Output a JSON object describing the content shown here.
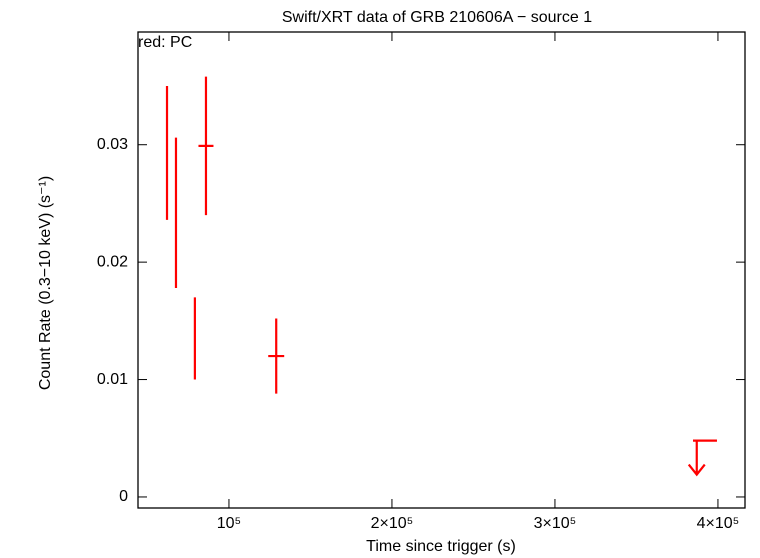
{
  "chart_data": {
    "type": "errorbar",
    "title": "Swift/XRT data of GRB 210606A − source 1",
    "subtitle": "red: PC",
    "x_label": "Time since trigger (s)",
    "y_label": "Count Rate (0.3−10 keV) (s⁻¹)",
    "xlim": [
      44200,
      416600
    ],
    "ylim": [
      -0.00094,
      0.0396
    ],
    "xticks": [
      {
        "value": 100000,
        "label": "10⁵"
      },
      {
        "value": 200000,
        "label": "2×10⁵"
      },
      {
        "value": 300000,
        "label": "3×10⁵"
      },
      {
        "value": 400000,
        "label": "4×10⁵"
      }
    ],
    "yticks": [
      0,
      0.01,
      0.02,
      0.03
    ],
    "series": [
      {
        "name": "PC",
        "color": "#ff0000",
        "x": [
          62000,
          67500,
          79100,
          85900,
          129000
        ],
        "xerr": [
          300,
          300,
          300,
          4600,
          4900
        ],
        "values": [
          0.0293,
          0.0242,
          0.0135,
          0.0299,
          0.012
        ],
        "yerr": [
          0.0057,
          0.0064,
          0.0035,
          0.0059,
          0.0032
        ]
      }
    ],
    "upper_limits": [
      {
        "x": 387000,
        "xmin": 384700,
        "xmax": 399400,
        "value": 0.0048
      }
    ]
  }
}
